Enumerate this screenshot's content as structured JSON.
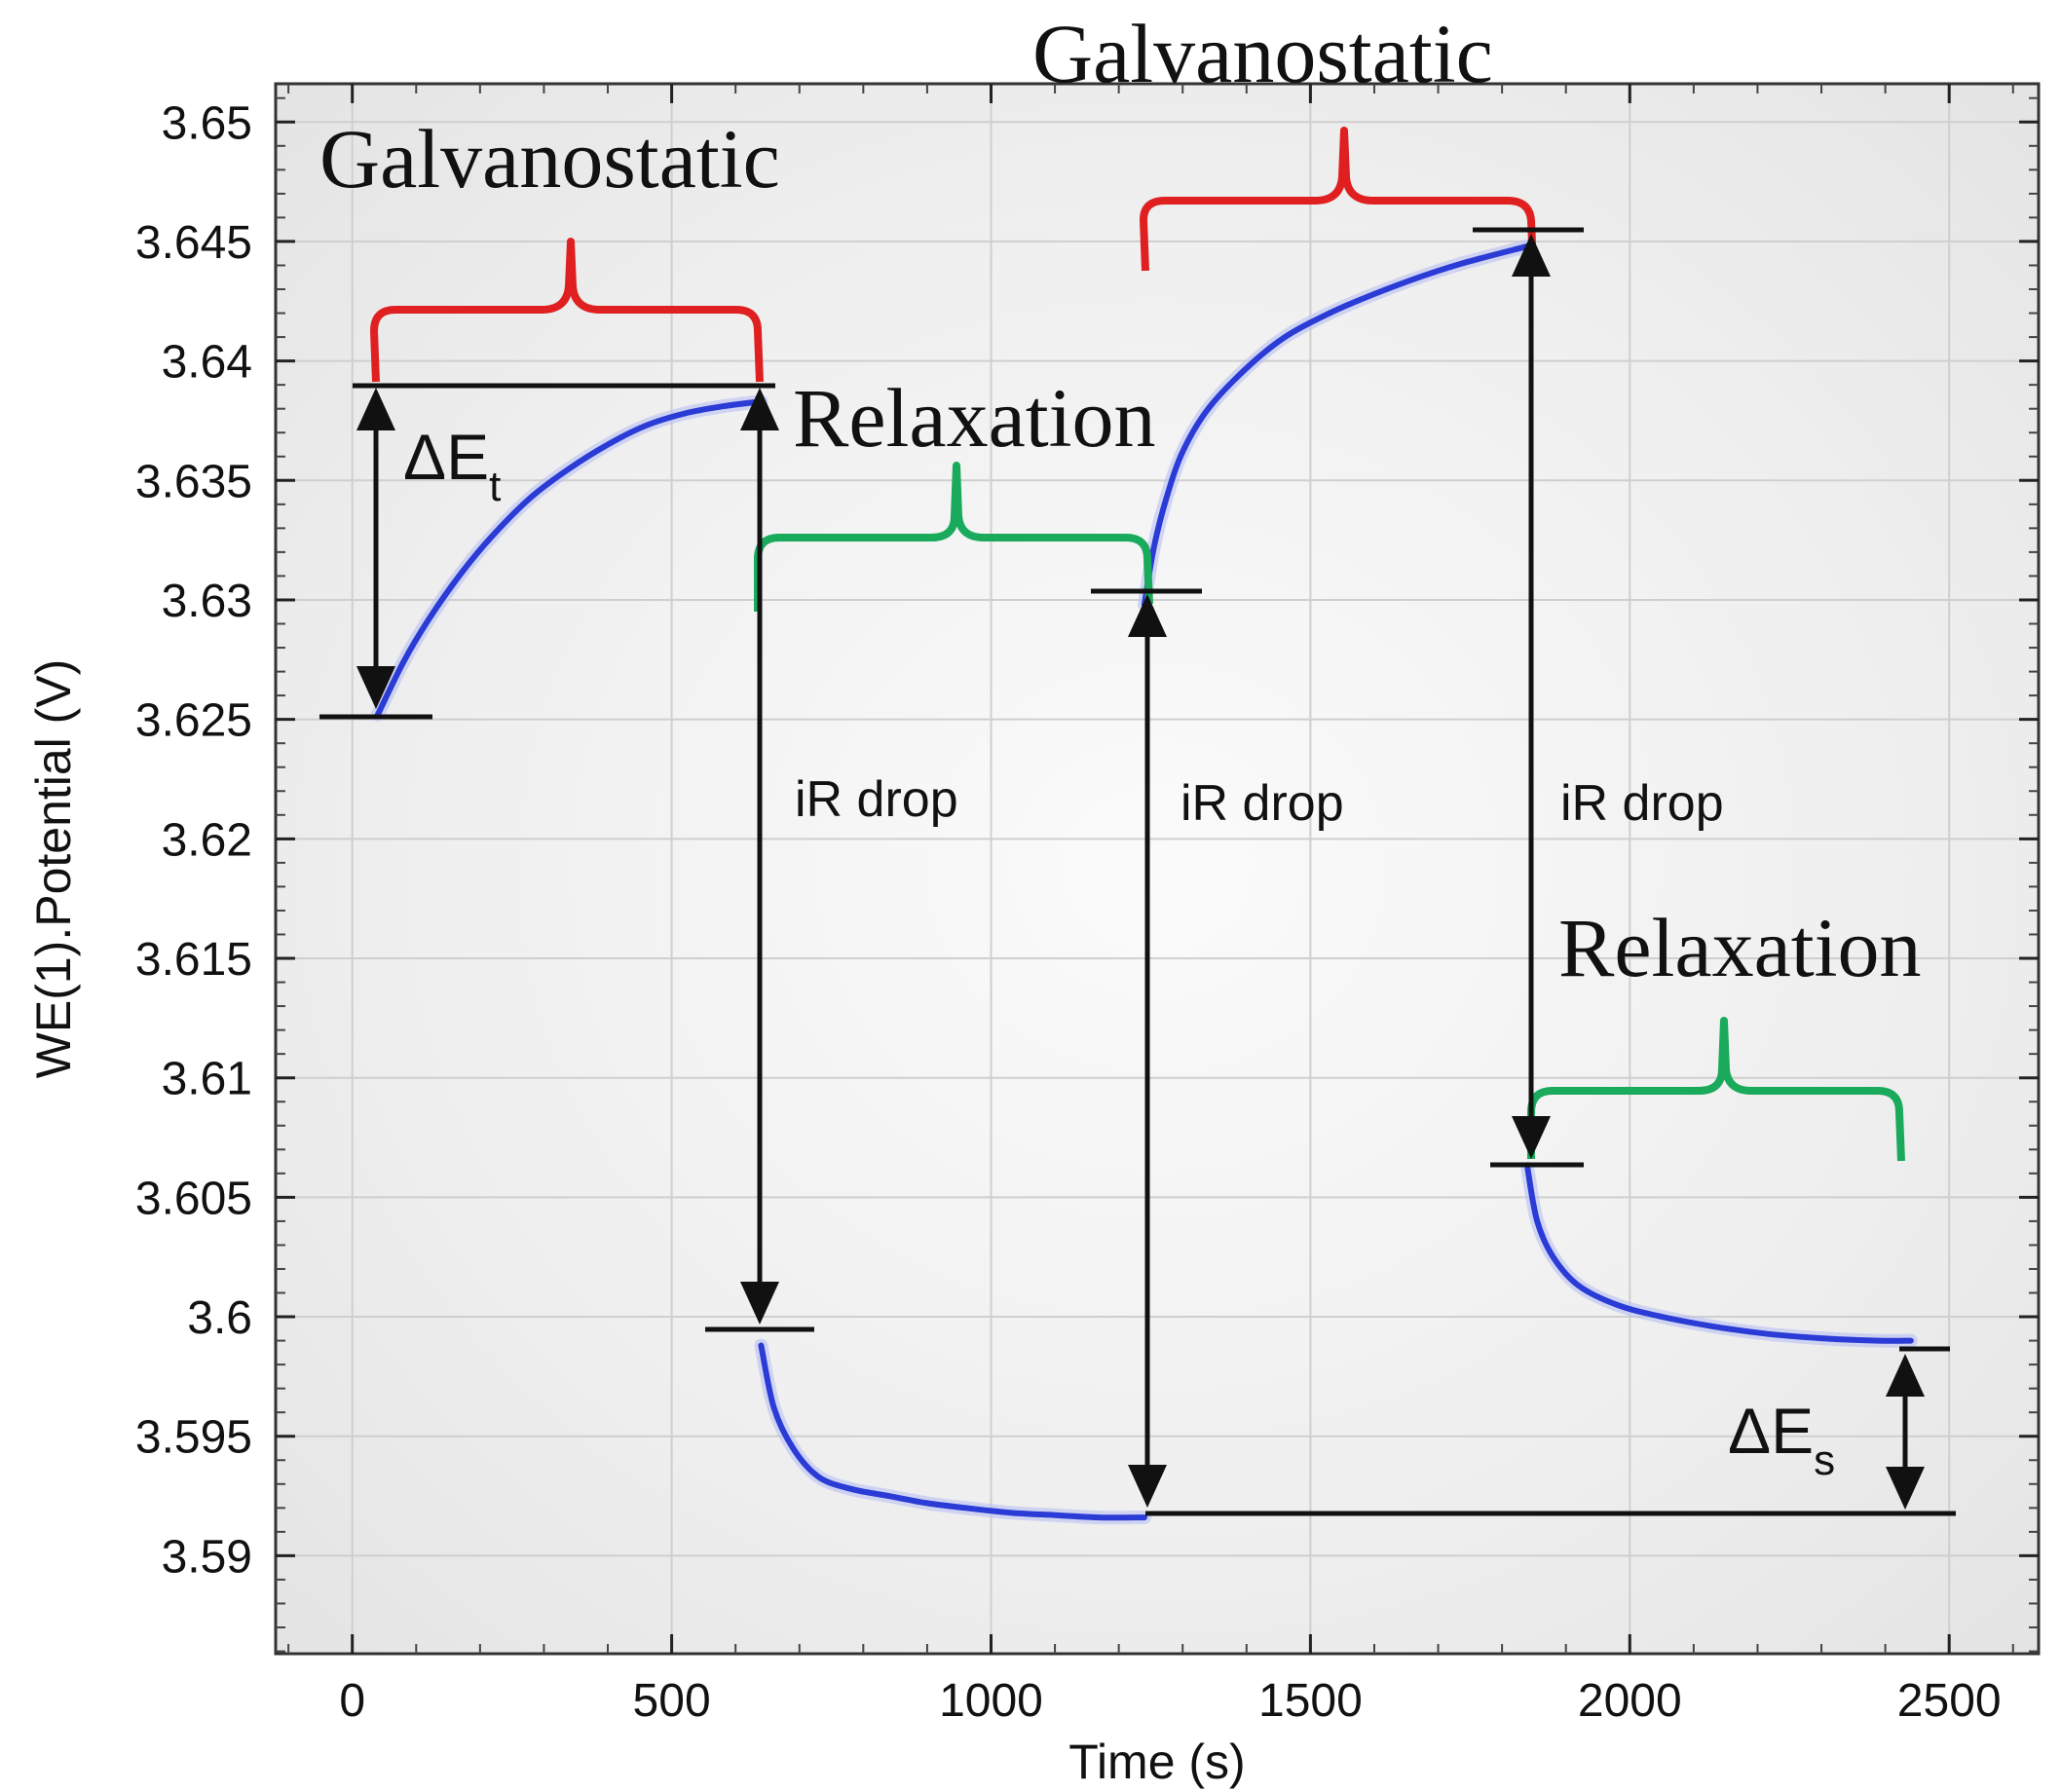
{
  "chart_data": {
    "type": "line",
    "xlabel": "Time (s)",
    "ylabel": "WE(1).Potential (V)",
    "xlim": [
      -120,
      2640
    ],
    "ylim": [
      3.5859,
      3.6516
    ],
    "x_ticks": [
      0,
      500,
      1000,
      1500,
      2000,
      2500
    ],
    "x_tick_labels": [
      "0",
      "500",
      "1000",
      "1500",
      "2000",
      "2500"
    ],
    "y_ticks": [
      3.59,
      3.595,
      3.6,
      3.605,
      3.61,
      3.615,
      3.62,
      3.625,
      3.63,
      3.635,
      3.64,
      3.645,
      3.65
    ],
    "y_tick_labels": [
      "3.59",
      "3.595",
      "3.6",
      "3.605",
      "3.61",
      "3.615",
      "3.62",
      "3.625",
      "3.63",
      "3.635",
      "3.64",
      "3.645",
      "3.65"
    ],
    "grid": true,
    "series": [
      {
        "color": "#2a3bd6",
        "x": [
          40,
          80,
          120,
          170,
          220,
          280,
          340,
          400,
          460,
          520,
          580,
          640,
          640,
          660,
          690,
          730,
          780,
          840,
          900,
          960,
          1030,
          1100,
          1170,
          1240,
          1240,
          1255,
          1275,
          1300,
          1340,
          1400,
          1460,
          1530,
          1600,
          1670,
          1740,
          1840,
          1840,
          1855,
          1880,
          1920,
          1980,
          2050,
          2130,
          2210,
          2300,
          2390,
          2440
        ],
        "y": [
          3.6252,
          3.6274,
          3.6292,
          3.6311,
          3.6327,
          3.6343,
          3.6355,
          3.6365,
          3.6373,
          3.6378,
          3.6381,
          3.6383,
          3.5988,
          3.5962,
          3.5945,
          3.5933,
          3.5928,
          3.5925,
          3.5922,
          3.592,
          3.5918,
          3.5917,
          3.5916,
          3.5916,
          3.6298,
          3.6322,
          3.6343,
          3.6362,
          3.638,
          3.6397,
          3.641,
          3.642,
          3.6428,
          3.6435,
          3.6441,
          3.6448,
          3.6062,
          3.604,
          3.6025,
          3.6013,
          3.6005,
          3.6,
          3.5996,
          3.5993,
          3.5991,
          3.599,
          3.599
        ]
      }
    ],
    "annotations": {
      "galvanostatic_1": "Galvanostatic",
      "galvanostatic_2": "Galvanostatic",
      "relaxation_1": "Relaxation",
      "relaxation_2": "Relaxation",
      "ir_drop_1": "iR drop",
      "ir_drop_2": "iR drop",
      "ir_drop_3": "iR drop",
      "delta_et": "ΔE",
      "delta_et_sub": "t",
      "delta_es": "ΔE",
      "delta_es_sub": "s"
    },
    "colors": {
      "galvanostatic_brace": "#e02020",
      "relaxation_brace": "#1aaa5c",
      "data_line": "#2a3bd6"
    }
  }
}
